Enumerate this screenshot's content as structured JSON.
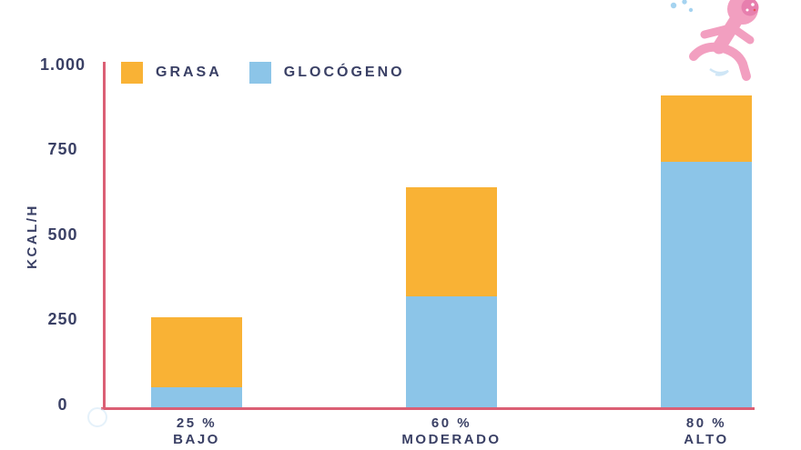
{
  "colors": {
    "axis_pink": "#db5f74",
    "text_navy": "#3a4065",
    "grasa_orange": "#f9b235",
    "glucogeno_blue": "#8cc5e8",
    "runner_pink": "#f29fc0",
    "runner_pink_dark": "#e77fae",
    "droplet_blue": "#a5d3f0"
  },
  "legend": {
    "items": [
      {
        "label": "GRASA",
        "color": "#f9b235"
      },
      {
        "label": "GLOCÓGENO",
        "color": "#8cc5e8"
      }
    ]
  },
  "illustration": {
    "name": "pink-runner"
  },
  "chart_data": {
    "type": "bar",
    "stacked": true,
    "title": "",
    "xlabel": "",
    "ylabel": "KCAL/H",
    "ylim": [
      0,
      1000
    ],
    "yticks": [
      0,
      250,
      500,
      750,
      1000
    ],
    "ytick_labels": [
      "0",
      "250",
      "500",
      "750",
      "1.000"
    ],
    "grid": false,
    "legend_position": "top-left",
    "categories": [
      {
        "intensity": "25 %",
        "label": "BAJO"
      },
      {
        "intensity": "60 %",
        "label": "MODERADO"
      },
      {
        "intensity": "80 %",
        "label": "ALTO"
      }
    ],
    "series": [
      {
        "name": "GLOCÓGENO",
        "color": "#8cc5e8",
        "stack_order": "bottom",
        "values": [
          60,
          325,
          720
        ]
      },
      {
        "name": "GRASA",
        "color": "#f9b235",
        "stack_order": "top",
        "values": [
          205,
          320,
          195
        ]
      }
    ],
    "totals": [
      265,
      645,
      915
    ]
  }
}
